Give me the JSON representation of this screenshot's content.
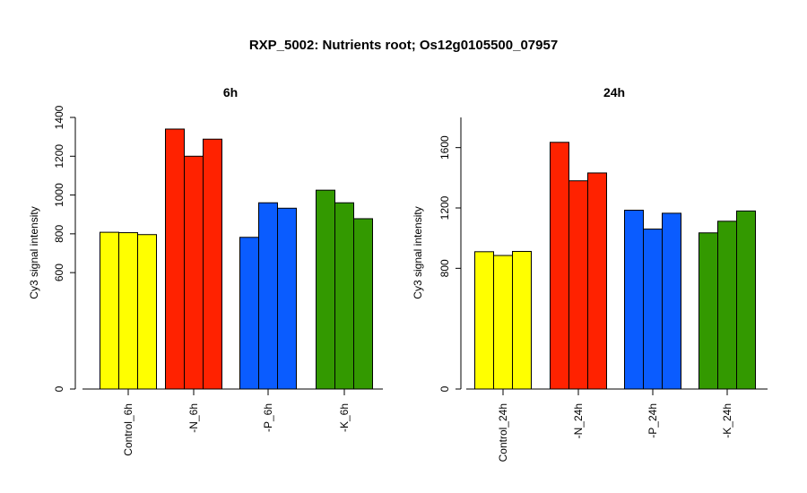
{
  "title": "RXP_5002: Nutrients root; Os12g0105500_07957",
  "colors": {
    "control": "#ffff00",
    "minus_n": "#ff2200",
    "minus_p": "#0a5cff",
    "minus_k": "#339900"
  },
  "chart_data": [
    {
      "type": "bar",
      "title": "6h",
      "ylabel": "Cy3 signal intensity",
      "ylim": [
        0,
        1400
      ],
      "yticks": [
        0,
        600,
        800,
        1000,
        1200,
        1400
      ],
      "categories": [
        "Control_6h",
        "-N_6h",
        "-P_6h",
        "-K_6h"
      ],
      "category_colors": [
        "#ffff00",
        "#ff2200",
        "#0a5cff",
        "#339900"
      ],
      "replicates": [
        [
          808,
          806,
          796
        ],
        [
          1340,
          1200,
          1288
        ],
        [
          782,
          960,
          932
        ],
        [
          1025,
          960,
          878
        ]
      ]
    },
    {
      "type": "bar",
      "title": "24h",
      "ylabel": "Cy3 signal intensity",
      "ylim": [
        0,
        1800
      ],
      "yticks": [
        0,
        800,
        1200,
        1600
      ],
      "categories": [
        "Control_24h",
        "-N_24h",
        "-P_24h",
        "-K_24h"
      ],
      "category_colors": [
        "#ffff00",
        "#ff2200",
        "#0a5cff",
        "#339900"
      ],
      "replicates": [
        [
          910,
          885,
          912
        ],
        [
          1635,
          1380,
          1432
        ],
        [
          1185,
          1060,
          1165
        ],
        [
          1035,
          1112,
          1180
        ]
      ]
    }
  ]
}
